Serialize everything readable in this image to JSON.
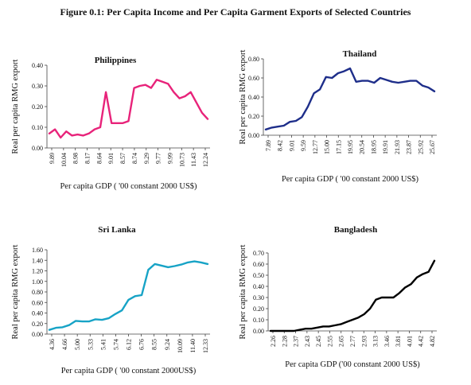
{
  "figure_title": "Figure 0.1: Per Capita Income and Per Capita Garment Exports of Selected Countries",
  "chart_data": [
    {
      "type": "line",
      "title": "Philippines",
      "color": "#e8237a",
      "ylabel": "Real per capita RMG export",
      "xlabel": "Per capita GDP ( '00 constant 2000 US$)",
      "ylim": [
        0,
        0.4
      ],
      "yticks": [
        "0.00",
        "0.10",
        "0.20",
        "0.30",
        "0.40"
      ],
      "x_tick_labels": [
        "9.89",
        "10.04",
        "8.98",
        "8.17",
        "8.64",
        "9.01",
        "8.57",
        "8.74",
        "9.29",
        "9.77",
        "9.99",
        "10.73",
        "11.43",
        "12.24"
      ],
      "values": [
        0.07,
        0.09,
        0.05,
        0.08,
        0.06,
        0.065,
        0.06,
        0.07,
        0.09,
        0.1,
        0.27,
        0.12,
        0.12,
        0.12,
        0.13,
        0.29,
        0.3,
        0.305,
        0.29,
        0.33,
        0.32,
        0.31,
        0.27,
        0.24,
        0.25,
        0.27,
        0.22,
        0.17,
        0.14
      ]
    },
    {
      "type": "line",
      "title": "Thailand",
      "color": "#1e2e8a",
      "ylabel": "Real per capita RMG export",
      "xlabel": "Per capita GDP ( '00 constant 2000 US$)",
      "ylim": [
        0,
        0.8
      ],
      "yticks": [
        "0.00",
        "0.20",
        "0.40",
        "0.60",
        "0.80"
      ],
      "x_tick_labels": [
        "7.89",
        "8.42",
        "9.01",
        "9.59",
        "12.77",
        "15.00",
        "17.15",
        "19.95",
        "20.54",
        "18.95",
        "19.91",
        "21.93",
        "23.87",
        "25.92",
        "25.67"
      ],
      "values": [
        0.06,
        0.08,
        0.09,
        0.1,
        0.14,
        0.15,
        0.19,
        0.3,
        0.44,
        0.48,
        0.61,
        0.6,
        0.65,
        0.67,
        0.7,
        0.56,
        0.57,
        0.57,
        0.55,
        0.6,
        0.58,
        0.56,
        0.55,
        0.56,
        0.57,
        0.57,
        0.52,
        0.5,
        0.46
      ]
    },
    {
      "type": "line",
      "title": "Sri Lanka",
      "color": "#17a3c6",
      "ylabel": "Real per capita RMG export",
      "xlabel": "Per capita GDP ( '00 constant 2000US$)",
      "ylim": [
        0,
        1.6
      ],
      "yticks": [
        "0.00",
        "0.20",
        "0.40",
        "0.60",
        "0.80",
        "1.00",
        "1.20",
        "1.40",
        "1.60"
      ],
      "x_tick_labels": [
        "4.36",
        "4.66",
        "5.00",
        "5.33",
        "5.41",
        "5.74",
        "6.12",
        "6.76",
        "8.55",
        "9.24",
        "10.09",
        "11.40",
        "12.33"
      ],
      "values": [
        0.08,
        0.12,
        0.13,
        0.17,
        0.25,
        0.24,
        0.24,
        0.28,
        0.27,
        0.3,
        0.38,
        0.45,
        0.65,
        0.72,
        0.74,
        1.22,
        1.33,
        1.3,
        1.27,
        1.29,
        1.32,
        1.36,
        1.38,
        1.36,
        1.33
      ]
    },
    {
      "type": "line",
      "title": "Bangladesh",
      "color": "#000000",
      "ylabel": "Real per capita RMG export",
      "xlabel": "Per capita GDP ('00 constant 2000 US$)",
      "ylim": [
        0,
        0.7
      ],
      "yticks": [
        "0.00",
        "0.10",
        "0.20",
        "0.30",
        "0.40",
        "0.50",
        "0.60",
        "0.70"
      ],
      "x_tick_labels": [
        "2.26",
        "2.28",
        "2.37",
        "2.43",
        "2.45",
        "2.55",
        "2.65",
        "2.77",
        "2.93",
        "3.13",
        "3.46",
        "3.81",
        "4.01",
        "4.42",
        "4.82"
      ],
      "values": [
        0.0,
        0.0,
        0.0,
        0.0,
        0.0,
        0.01,
        0.02,
        0.02,
        0.03,
        0.04,
        0.04,
        0.05,
        0.06,
        0.08,
        0.1,
        0.12,
        0.15,
        0.2,
        0.28,
        0.3,
        0.3,
        0.3,
        0.34,
        0.39,
        0.42,
        0.48,
        0.51,
        0.53,
        0.63
      ]
    }
  ]
}
